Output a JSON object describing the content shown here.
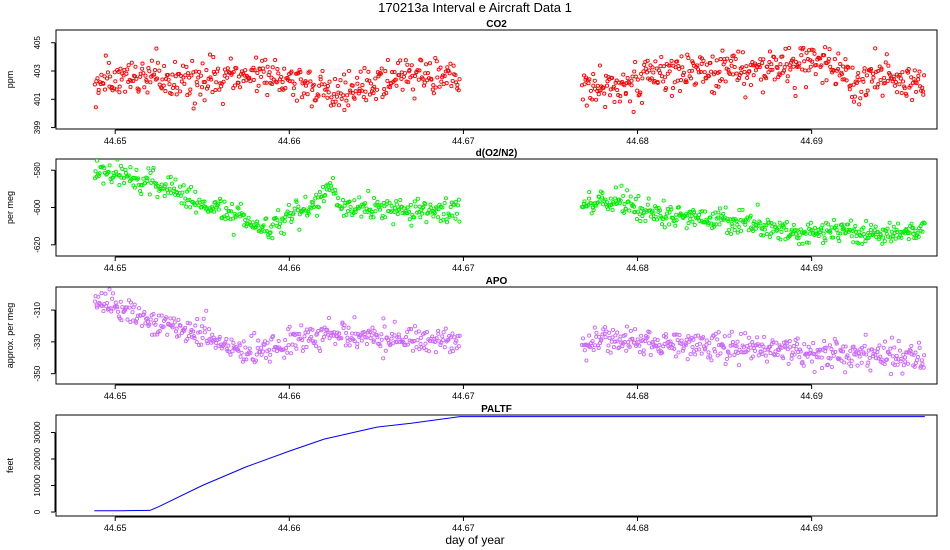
{
  "figure": {
    "title": "170213a   Interval e Aircraft Data 1",
    "xlabel": "day of year"
  },
  "chart_data": [
    {
      "type": "scatter",
      "title": "CO2",
      "ylabel": "ppm",
      "color": "#ff0000",
      "marker": "open-circle",
      "xlim": [
        44.6466,
        44.6972
      ],
      "ylim": [
        398.9,
        405.9
      ],
      "xticks": [
        44.65,
        44.66,
        44.67,
        44.68,
        44.69
      ],
      "xtick_labels": [
        "44.65",
        "44.66",
        "44.67",
        "44.68",
        "44.69"
      ],
      "yticks": [
        399,
        401,
        403,
        405
      ],
      "ytick_labels": [
        "399",
        "401",
        "403",
        "405"
      ],
      "segments": [
        {
          "x_start": 44.6488,
          "x_end": 44.6698,
          "points": 420,
          "trend": [
            [
              44.6488,
              402.2
            ],
            [
              44.652,
              402.5
            ],
            [
              44.655,
              402.3
            ],
            [
              44.657,
              402.6
            ],
            [
              44.6585,
              403.1
            ],
            [
              44.6605,
              402.2
            ],
            [
              44.6625,
              401.3
            ],
            [
              44.6645,
              402.0
            ],
            [
              44.667,
              402.8
            ],
            [
              44.6698,
              402.3
            ]
          ],
          "spread": 0.7
        },
        {
          "x_start": 44.6768,
          "x_end": 44.6965,
          "points": 420,
          "trend": [
            [
              44.6768,
              402.0
            ],
            [
              44.679,
              401.8
            ],
            [
              44.681,
              402.8
            ],
            [
              44.684,
              403.0
            ],
            [
              44.687,
              403.1
            ],
            [
              44.6895,
              403.6
            ],
            [
              44.6915,
              403.3
            ],
            [
              44.6925,
              401.8
            ],
            [
              44.694,
              402.9
            ],
            [
              44.6965,
              402.3
            ]
          ],
          "spread": 0.7
        }
      ]
    },
    {
      "type": "scatter",
      "title": "d(O2/N2)",
      "ylabel": "per meg",
      "color": "#00ee00",
      "marker": "open-circle",
      "xlim": [
        44.6466,
        44.6972
      ],
      "ylim": [
        -626,
        -574
      ],
      "xticks": [
        44.65,
        44.66,
        44.67,
        44.68,
        44.69
      ],
      "xtick_labels": [
        "44.65",
        "44.66",
        "44.67",
        "44.68",
        "44.69"
      ],
      "yticks": [
        -580,
        -600,
        -620
      ],
      "ytick_labels": [
        "-580",
        "-600",
        "-620"
      ],
      "segments": [
        {
          "x_start": 44.6488,
          "x_end": 44.6698,
          "points": 420,
          "trend": [
            [
              44.6488,
              -580
            ],
            [
              44.651,
              -585
            ],
            [
              44.653,
              -591
            ],
            [
              44.655,
              -597
            ],
            [
              44.657,
              -604
            ],
            [
              44.6585,
              -613
            ],
            [
              44.66,
              -604
            ],
            [
              44.6615,
              -598
            ],
            [
              44.6625,
              -588
            ],
            [
              44.663,
              -600
            ],
            [
              44.666,
              -601
            ],
            [
              44.6698,
              -602
            ]
          ],
          "spread": 3.2
        },
        {
          "x_start": 44.6768,
          "x_end": 44.6965,
          "points": 420,
          "trend": [
            [
              44.6768,
              -599
            ],
            [
              44.679,
              -597
            ],
            [
              44.681,
              -603
            ],
            [
              44.684,
              -607
            ],
            [
              44.687,
              -609
            ],
            [
              44.6895,
              -615
            ],
            [
              44.692,
              -612
            ],
            [
              44.6945,
              -615
            ],
            [
              44.6965,
              -611
            ]
          ],
          "spread": 3.2
        }
      ]
    },
    {
      "type": "scatter",
      "title": "APO",
      "ylabel": "approx. per meg",
      "color": "#cc66ff",
      "marker": "open-circle",
      "xlim": [
        44.6466,
        44.6972
      ],
      "ylim": [
        -356.5,
        -295.5
      ],
      "xticks": [
        44.65,
        44.66,
        44.67,
        44.68,
        44.69
      ],
      "xtick_labels": [
        "44.65",
        "44.66",
        "44.67",
        "44.68",
        "44.69"
      ],
      "yticks": [
        -310,
        -330,
        -350
      ],
      "ytick_labels": [
        "-310",
        "-330",
        "-350"
      ],
      "segments": [
        {
          "x_start": 44.6488,
          "x_end": 44.6698,
          "points": 420,
          "trend": [
            [
              44.6488,
              -305
            ],
            [
              44.651,
              -313
            ],
            [
              44.653,
              -320
            ],
            [
              44.655,
              -326
            ],
            [
              44.6575,
              -337
            ],
            [
              44.6595,
              -332
            ],
            [
              44.662,
              -325
            ],
            [
              44.665,
              -328
            ],
            [
              44.6698,
              -330
            ]
          ],
          "spread": 4.5
        },
        {
          "x_start": 44.6768,
          "x_end": 44.6965,
          "points": 420,
          "trend": [
            [
              44.6768,
              -328
            ],
            [
              44.68,
              -330
            ],
            [
              44.684,
              -333
            ],
            [
              44.688,
              -334
            ],
            [
              44.692,
              -339
            ],
            [
              44.6965,
              -339
            ]
          ],
          "spread": 4.5
        }
      ]
    },
    {
      "type": "line",
      "title": "PALTF",
      "ylabel": "feet",
      "color": "#0000ff",
      "xlim": [
        44.6466,
        44.6972
      ],
      "ylim": [
        -1500,
        36600
      ],
      "xticks": [
        44.65,
        44.66,
        44.67,
        44.68,
        44.69
      ],
      "xtick_labels": [
        "44.65",
        "44.66",
        "44.67",
        "44.68",
        "44.69"
      ],
      "yticks": [
        0,
        10000,
        20000,
        30000
      ],
      "ytick_labels": [
        "0",
        "10000",
        "20000",
        "30000"
      ],
      "x": [
        44.6488,
        44.6505,
        44.652,
        44.6525,
        44.655,
        44.6575,
        44.66,
        44.662,
        44.665,
        44.667,
        44.6698,
        44.6965
      ],
      "y": [
        500,
        500,
        600,
        2000,
        10000,
        17000,
        23000,
        27500,
        32000,
        33500,
        36000,
        36000
      ]
    }
  ]
}
